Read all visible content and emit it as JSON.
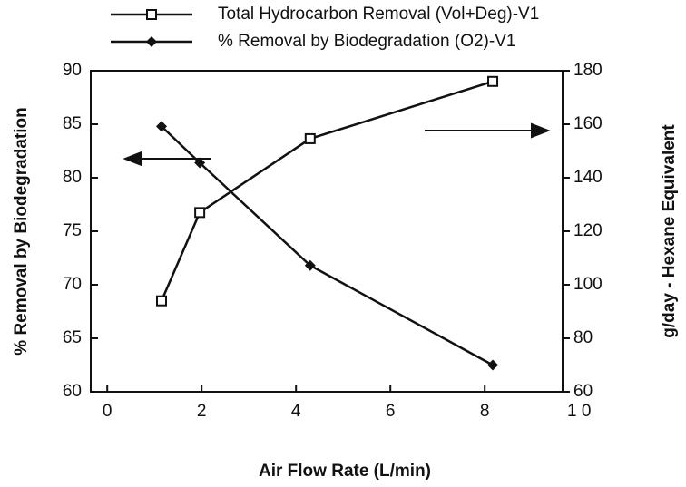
{
  "chart_data": {
    "type": "line",
    "x_label": "Air Flow Rate (L/min)",
    "y_label": "% Removal by Biodegradation",
    "y2_label": "g/day - Hexane Equivalent",
    "xlim": [
      -0.35,
      9.65
    ],
    "xticks": [
      0,
      2,
      4,
      6,
      8,
      {
        "value": 10,
        "label": "1 0"
      }
    ],
    "ylim": [
      60,
      90
    ],
    "yticks": [
      60,
      65,
      70,
      75,
      80,
      85,
      90
    ],
    "y2lim": [
      60,
      180
    ],
    "y2ticks": [
      60,
      80,
      100,
      120,
      140,
      160,
      180
    ],
    "series": [
      {
        "name": "Total Hydrocarbon Removal (Vol+Deg)-V1",
        "color": "#111111",
        "marker": "square",
        "axis": "y2",
        "x": [
          1.15,
          1.96,
          4.3,
          8.17
        ],
        "values": [
          94,
          127,
          154.6,
          176
        ]
      },
      {
        "name": "% Removal by Biodegradation (O2)-V1",
        "color": "#111111",
        "marker": "diamond",
        "axis": "y",
        "x": [
          1.15,
          1.96,
          4.3,
          8.17
        ],
        "values": [
          84.8,
          81.4,
          71.8,
          62.5
        ]
      }
    ]
  }
}
